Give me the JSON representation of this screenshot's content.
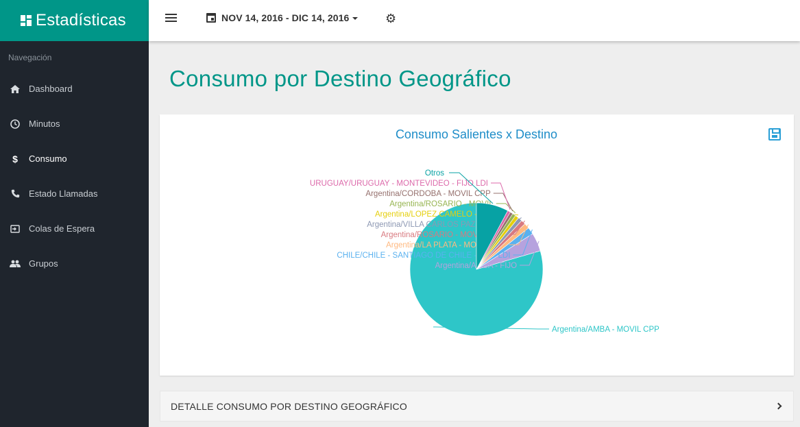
{
  "app": {
    "title": "Estadísticas"
  },
  "sidebar": {
    "heading": "Navegación",
    "items": [
      {
        "label": "Dashboard",
        "icon": "home-icon"
      },
      {
        "label": "Minutos",
        "icon": "clock-icon"
      },
      {
        "label": "Consumo",
        "icon": "dollar-icon",
        "active": true
      },
      {
        "label": "Estado Llamadas",
        "icon": "phone-icon"
      },
      {
        "label": "Colas de Espera",
        "icon": "queue-icon"
      },
      {
        "label": "Grupos",
        "icon": "group-icon"
      }
    ]
  },
  "topbar": {
    "date_range": "NOV 14, 2016 - DIC 14, 2016"
  },
  "page": {
    "title": "Consumo por Destino Geográfico"
  },
  "detail": {
    "title": "DETALLE CONSUMO POR DESTINO GEOGRÁFICO"
  },
  "chart_data": {
    "type": "pie",
    "title": "Consumo Salientes x Destino",
    "series": [
      {
        "name": "Argentina/AMBA - MOVIL CPP",
        "value": 79.5,
        "color": "#2ec6c8"
      },
      {
        "name": "Argentina/AMBA - FIJO",
        "value": 4.5,
        "color": "#b6a2de"
      },
      {
        "name": "CHILE/CHILE - SANTIAGO DE CHILE - FIJO LDI",
        "value": 1.7,
        "color": "#5ab1ef"
      },
      {
        "name": "Argentina/LA PLATA - MOVIL CPP",
        "value": 1.3,
        "color": "#ffb980"
      },
      {
        "name": "Argentina/ROSARIO - MOVIL CPP",
        "value": 1.1,
        "color": "#d87a80"
      },
      {
        "name": "Argentina/VILLA CARLOS PAZ - FIJO",
        "value": 1.0,
        "color": "#8d98b3"
      },
      {
        "name": "Argentina/LOPEZ CAMELO - FIJO",
        "value": 0.9,
        "color": "#e5cf0d"
      },
      {
        "name": "Argentina/ROSARIO - MOVIL",
        "value": 0.8,
        "color": "#97b552"
      },
      {
        "name": "Argentina/CORDOBA - MOVIL CPP",
        "value": 0.7,
        "color": "#95706d"
      },
      {
        "name": "URUGUAY/URUGUAY - MONTEVIDEO - FIJO LDI",
        "value": 0.7,
        "color": "#dc69aa"
      },
      {
        "name": "Otros",
        "value": 7.8,
        "color": "#07a2a4"
      }
    ]
  }
}
